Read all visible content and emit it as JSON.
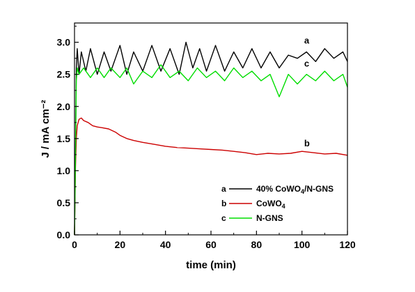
{
  "chart_data": {
    "type": "line",
    "xlabel": "time (min)",
    "ylabel": "J / mA cm⁻²",
    "xlim": [
      0,
      120
    ],
    "ylim": [
      0.0,
      3.3
    ],
    "xticks": [
      "0",
      "20",
      "40",
      "60",
      "80",
      "100",
      "120"
    ],
    "yticks": [
      "0.0",
      "0.5",
      "1.0",
      "1.5",
      "2.0",
      "2.5",
      "3.0"
    ],
    "grid": false,
    "legend_position": "lower-right-inside",
    "legend": [
      {
        "letter": "a",
        "name": "40% CoWO4/N-GNS",
        "color": "#000000"
      },
      {
        "letter": "b",
        "name": "CoWO4",
        "color": "#cc0000"
      },
      {
        "letter": "c",
        "name": "N-GNS",
        "color": "#00dd00"
      }
    ],
    "annotations": [
      {
        "text": "a",
        "x": 101,
        "y": 2.98
      },
      {
        "text": "c",
        "x": 101,
        "y": 2.62
      },
      {
        "text": "b",
        "x": 101,
        "y": 1.38
      }
    ],
    "series": [
      {
        "name": "40% CoWO4/N-GNS",
        "color": "#000000",
        "x": [
          0,
          0.4,
          0.8,
          1.2,
          2,
          3,
          5,
          7,
          10,
          13,
          16,
          20,
          23,
          26,
          30,
          34,
          38,
          42,
          46,
          49,
          52,
          55,
          58,
          62,
          66,
          70,
          74,
          78,
          82,
          86,
          90,
          94,
          98,
          102,
          106,
          110,
          114,
          118,
          120
        ],
        "y": [
          0.0,
          1.2,
          2.6,
          2.9,
          2.5,
          2.85,
          2.55,
          2.9,
          2.5,
          2.85,
          2.55,
          2.95,
          2.5,
          2.85,
          2.55,
          2.95,
          2.55,
          2.9,
          2.5,
          3.0,
          2.6,
          2.9,
          2.55,
          2.95,
          2.55,
          2.85,
          2.6,
          2.9,
          2.6,
          2.85,
          2.6,
          2.8,
          2.75,
          2.85,
          2.7,
          2.9,
          2.75,
          2.85,
          2.7
        ]
      },
      {
        "name": "CoWO4",
        "color": "#cc0000",
        "x": [
          0,
          0.4,
          0.8,
          1.2,
          2,
          3,
          4,
          6,
          8,
          10,
          12,
          15,
          18,
          20,
          23,
          26,
          30,
          35,
          40,
          45,
          50,
          55,
          60,
          65,
          70,
          75,
          80,
          85,
          90,
          95,
          100,
          105,
          110,
          115,
          120
        ],
        "y": [
          0.0,
          1.0,
          1.5,
          1.7,
          1.8,
          1.82,
          1.78,
          1.75,
          1.7,
          1.68,
          1.67,
          1.65,
          1.6,
          1.55,
          1.5,
          1.47,
          1.44,
          1.41,
          1.38,
          1.36,
          1.35,
          1.34,
          1.33,
          1.32,
          1.3,
          1.28,
          1.25,
          1.27,
          1.26,
          1.27,
          1.3,
          1.28,
          1.26,
          1.27,
          1.24
        ]
      },
      {
        "name": "N-GNS",
        "color": "#00dd00",
        "x": [
          0,
          0.4,
          0.8,
          1.2,
          2,
          4,
          7,
          10,
          13,
          16,
          20,
          23,
          26,
          30,
          34,
          38,
          42,
          46,
          50,
          54,
          58,
          62,
          66,
          70,
          74,
          78,
          82,
          86,
          90,
          94,
          98,
          102,
          106,
          110,
          114,
          118,
          120
        ],
        "y": [
          0.0,
          1.1,
          2.4,
          2.6,
          2.5,
          2.6,
          2.45,
          2.6,
          2.45,
          2.6,
          2.45,
          2.6,
          2.35,
          2.55,
          2.45,
          2.65,
          2.45,
          2.55,
          2.4,
          2.6,
          2.45,
          2.55,
          2.4,
          2.6,
          2.45,
          2.55,
          2.4,
          2.5,
          2.15,
          2.5,
          2.35,
          2.5,
          2.4,
          2.55,
          2.4,
          2.5,
          2.3
        ]
      }
    ]
  }
}
